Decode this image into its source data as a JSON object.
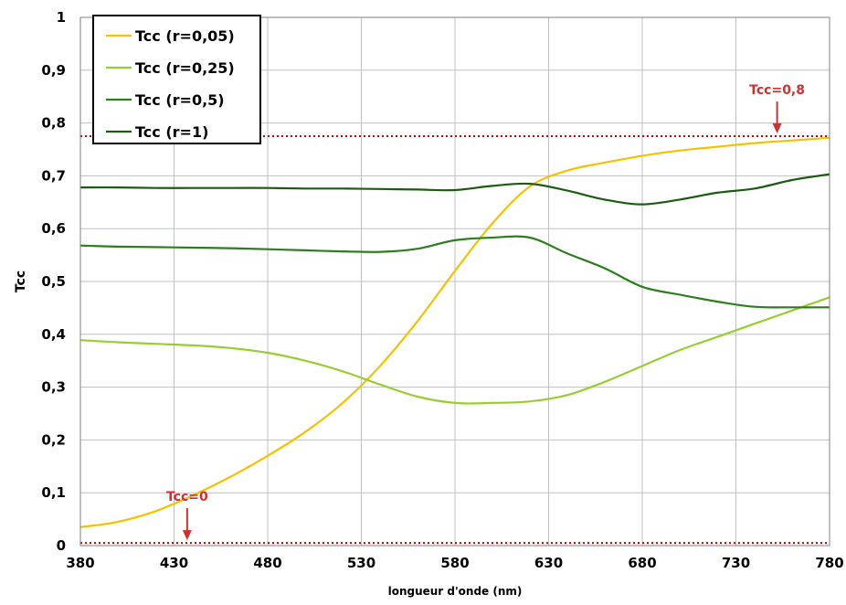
{
  "chart_data": {
    "type": "line",
    "xlabel": "longueur d'onde  (nm)",
    "ylabel": "Tcc",
    "xlim": [
      380,
      780
    ],
    "ylim": [
      0,
      1
    ],
    "x_ticks": [
      "380",
      "430",
      "480",
      "530",
      "580",
      "630",
      "680",
      "730",
      "780"
    ],
    "y_ticks": [
      "0",
      "0,1",
      "0,2",
      "0,3",
      "0,4",
      "0,5",
      "0,6",
      "0,7",
      "0,8",
      "0,9",
      "1"
    ],
    "grid": true,
    "legend_position": "top-left",
    "x": [
      380,
      400,
      420,
      440,
      460,
      480,
      500,
      520,
      540,
      560,
      580,
      600,
      620,
      640,
      660,
      680,
      700,
      720,
      740,
      760,
      780
    ],
    "series": [
      {
        "name": "Tcc (r=0,05)",
        "color": "#f5c200",
        "values": [
          0.035,
          0.045,
          0.065,
          0.095,
          0.13,
          0.17,
          0.215,
          0.27,
          0.34,
          0.425,
          0.52,
          0.61,
          0.68,
          0.71,
          0.725,
          0.738,
          0.748,
          0.755,
          0.762,
          0.767,
          0.772
        ]
      },
      {
        "name": "Tcc (r=0,25)",
        "color": "#9acd32",
        "values": [
          0.389,
          0.385,
          0.382,
          0.379,
          0.374,
          0.365,
          0.35,
          0.33,
          0.305,
          0.282,
          0.27,
          0.27,
          0.273,
          0.285,
          0.31,
          0.34,
          0.37,
          0.395,
          0.42,
          0.445,
          0.47
        ]
      },
      {
        "name": "Tcc (r=0,5)",
        "color": "#2e7d1e",
        "values": [
          0.568,
          0.566,
          0.565,
          0.564,
          0.563,
          0.561,
          0.559,
          0.557,
          0.556,
          0.562,
          0.578,
          0.583,
          0.583,
          0.553,
          0.525,
          0.49,
          0.475,
          0.462,
          0.452,
          0.451,
          0.451
        ]
      },
      {
        "name": "Tcc (r=1)",
        "color": "#1e5a14",
        "values": [
          0.678,
          0.678,
          0.677,
          0.677,
          0.677,
          0.677,
          0.676,
          0.676,
          0.675,
          0.674,
          0.673,
          0.681,
          0.685,
          0.672,
          0.655,
          0.646,
          0.655,
          0.668,
          0.676,
          0.692,
          0.703
        ]
      }
    ],
    "reference_lines": [
      {
        "y": 0.775,
        "color": "#cc0000",
        "style": "dotted"
      },
      {
        "y": 0.005,
        "color": "#cc0000",
        "style": "dotted"
      }
    ],
    "annotations": [
      {
        "text": "Tcc=0,8",
        "x": 752,
        "y": 0.775,
        "color": "#d32f2f"
      },
      {
        "text": "Tcc=0",
        "x": 437,
        "y": 0.005,
        "color": "#d32f2f"
      }
    ]
  }
}
